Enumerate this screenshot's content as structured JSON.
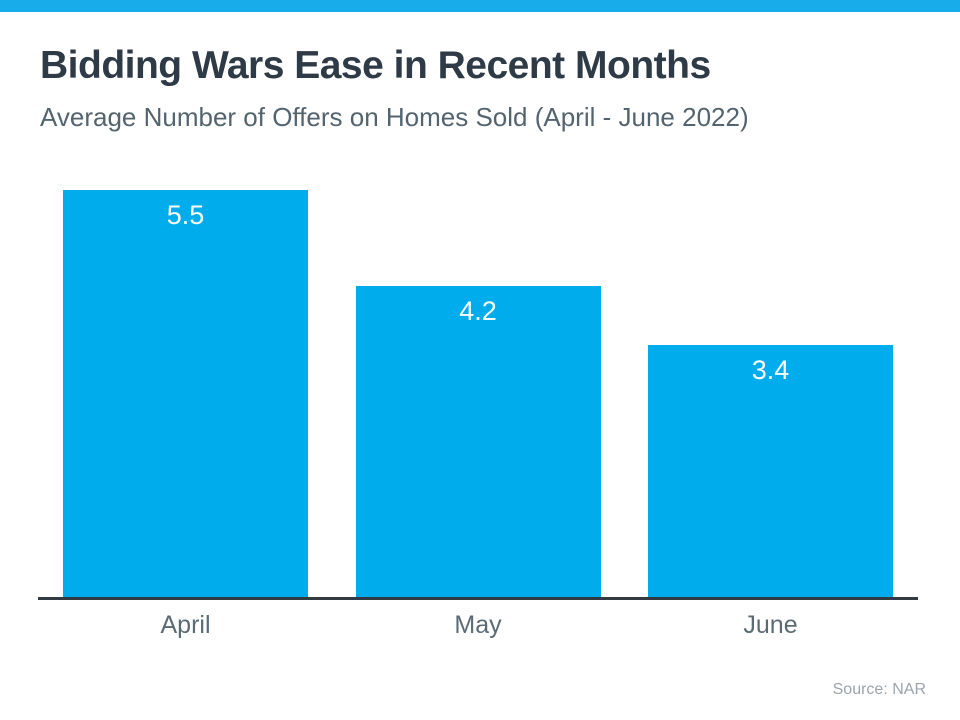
{
  "header": {
    "title": "Bidding Wars Ease in Recent Months",
    "subtitle": "Average Number of Offers on Homes Sold (April - June 2022)"
  },
  "chart_data": {
    "type": "bar",
    "title": "Bidding Wars Ease in Recent Months",
    "subtitle": "Average Number of Offers on Homes Sold (April - June 2022)",
    "categories": [
      "April",
      "May",
      "June"
    ],
    "values": [
      5.5,
      4.2,
      3.4
    ],
    "value_labels": [
      "5.5",
      "4.2",
      "3.4"
    ],
    "ylim": [
      0,
      5.5
    ],
    "grid": false,
    "legend": false,
    "value_label_position": "inside-top",
    "source": "Source: NAR"
  },
  "colors": {
    "accent_bar": "#18ADEA",
    "bar": "#00ACEC",
    "value_label": "#FFFFFF",
    "axis_line": "#333B42",
    "title": "#2E3B46",
    "subtitle": "#54646F",
    "axis_label": "#5A6B76",
    "source": "#9BA4AC",
    "background": "#FFFFFF"
  }
}
